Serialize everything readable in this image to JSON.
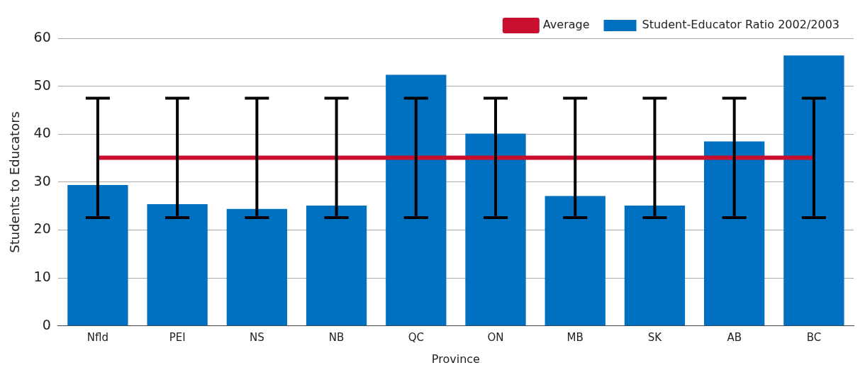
{
  "chart_data": {
    "type": "bar",
    "xlabel": "Province",
    "ylabel": "Students to Educators",
    "categories": [
      "Nfld",
      "PEI",
      "NS",
      "NB",
      "QC",
      "ON",
      "MB",
      "SK",
      "AB",
      "BC"
    ],
    "series": [
      {
        "name": "Student-Educator Ratio 2002/2003",
        "color": "#0070c0",
        "values": [
          29.4,
          25.4,
          24.4,
          25.1,
          52.4,
          40.1,
          27.1,
          25.1,
          38.5,
          56.4
        ]
      },
      {
        "name": "Average",
        "type": "line",
        "color": "#c8102e",
        "marker": "none",
        "values": [
          35.1,
          35.1,
          35.1,
          35.1,
          35.1,
          35.1,
          35.1,
          35.1,
          35.1,
          35.1
        ],
        "errors": [
          [
            22.6,
            47.5
          ],
          [
            22.6,
            47.5
          ],
          [
            22.6,
            47.5
          ],
          [
            22.6,
            47.5
          ],
          [
            22.6,
            47.5
          ],
          [
            22.6,
            47.5
          ],
          [
            22.6,
            47.5
          ],
          [
            22.6,
            47.5
          ],
          [
            22.6,
            47.5
          ],
          [
            22.6,
            47.5
          ]
        ]
      }
    ],
    "ylim": [
      0,
      60
    ],
    "yticks": [
      0,
      10,
      20,
      30,
      40,
      50,
      60
    ],
    "grid": "y",
    "legend": "top right"
  }
}
